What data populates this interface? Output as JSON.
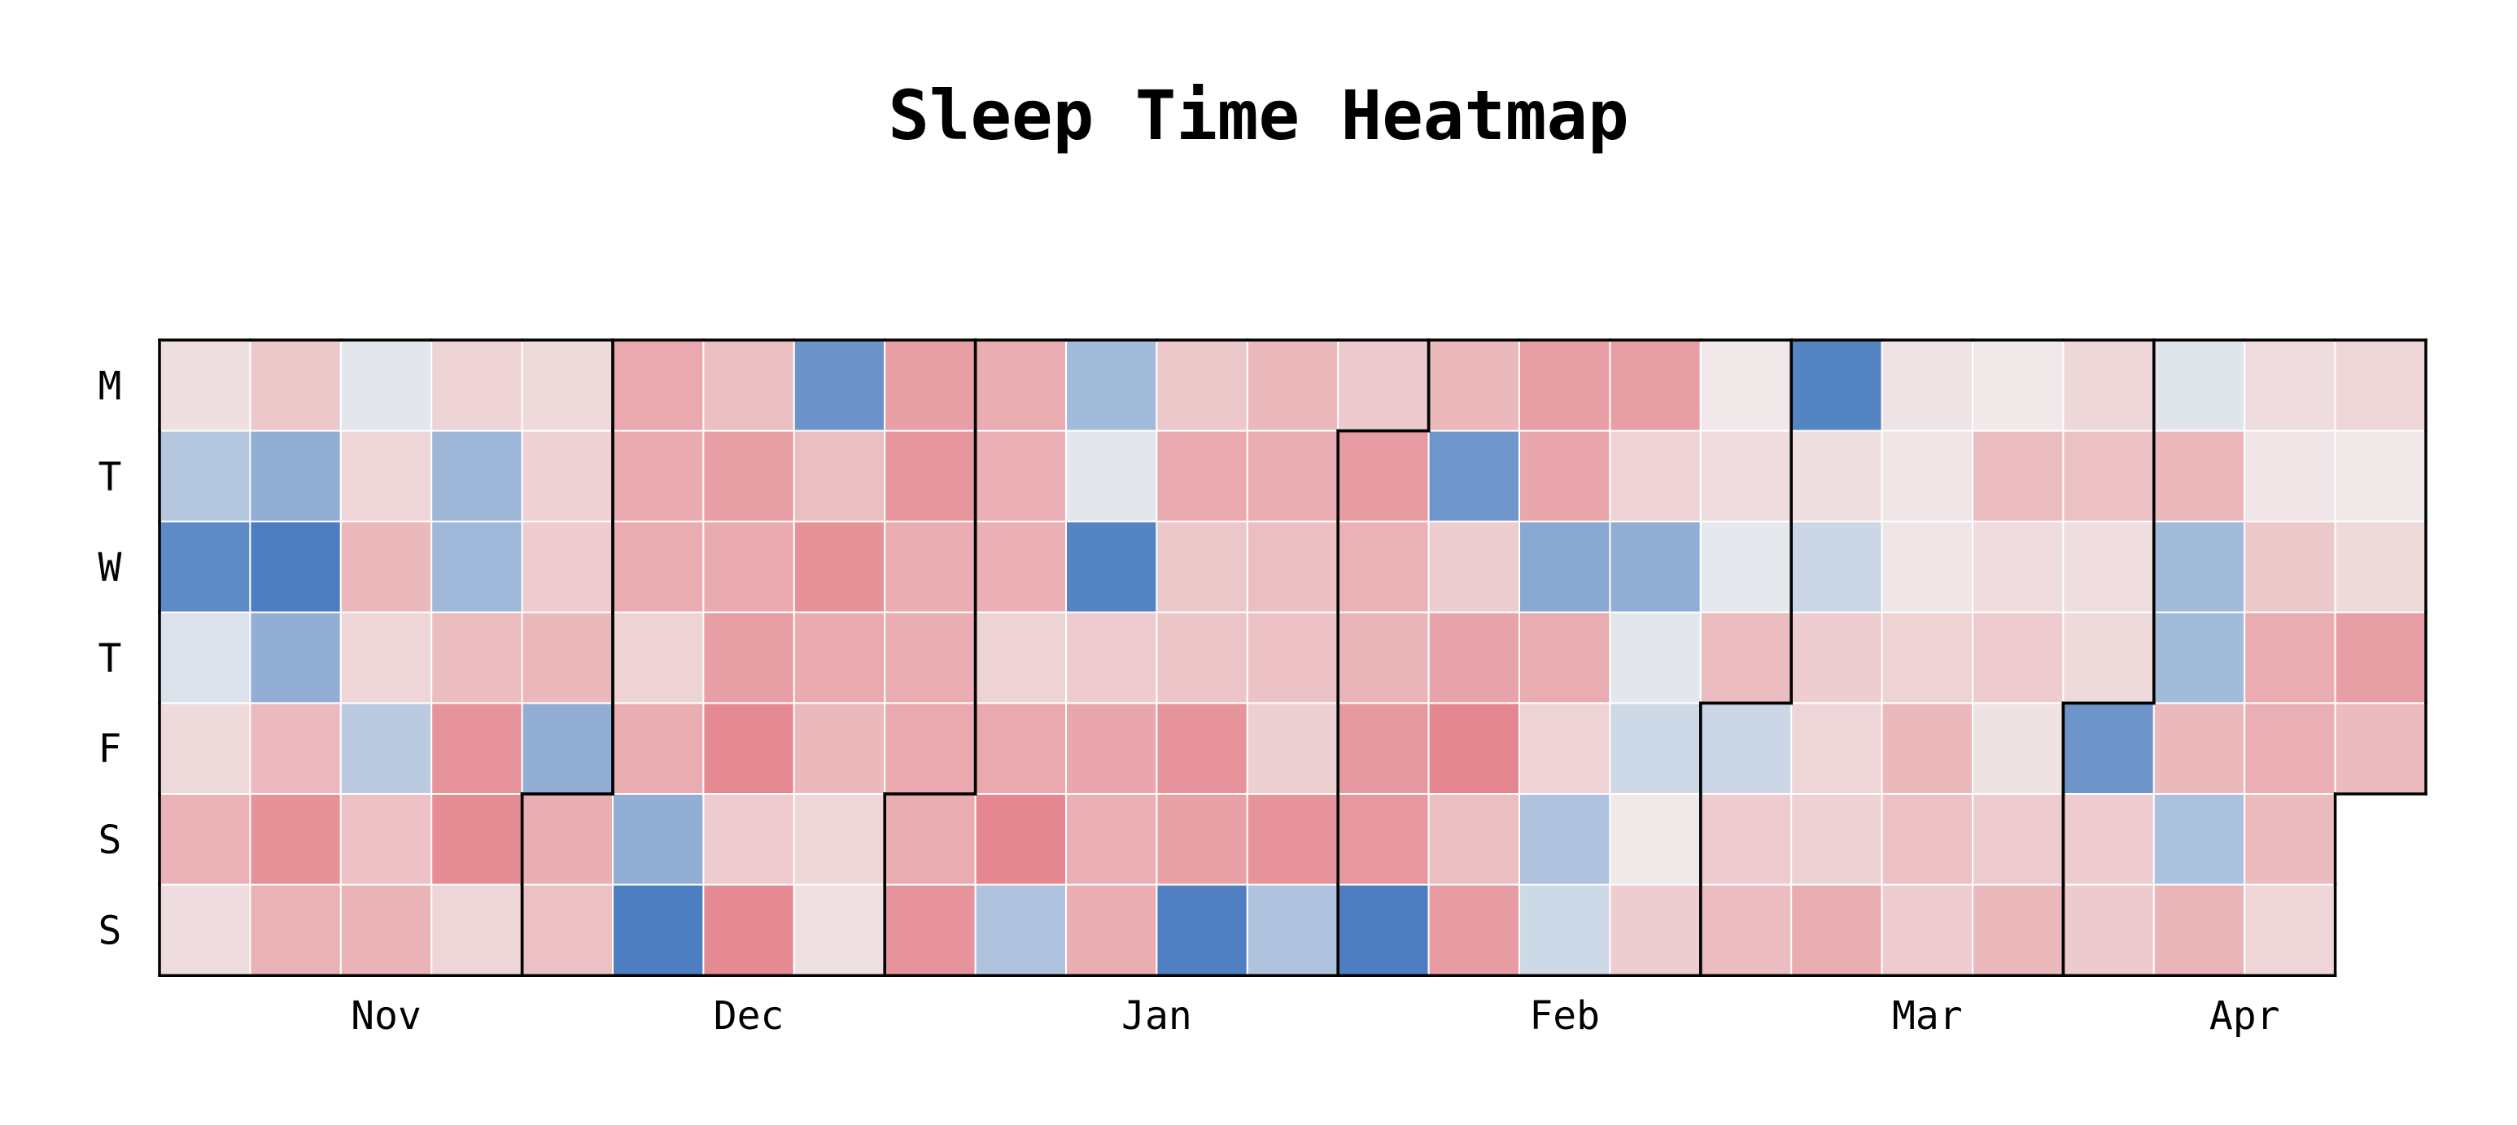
{
  "chart_data": {
    "type": "heatmap",
    "title": "Sleep Time Heatmap",
    "y_tick_labels": [
      "M",
      "T",
      "W",
      "T",
      "F",
      "S",
      "S"
    ],
    "x_tick_labels": [
      {
        "label": "Nov",
        "week": 2.5
      },
      {
        "label": "Dec",
        "week": 6.5
      },
      {
        "label": "Jan",
        "week": 11
      },
      {
        "label": "Feb",
        "week": 15.5
      },
      {
        "label": "Mar",
        "week": 19.5
      },
      {
        "label": "Apr",
        "week": 23
      }
    ],
    "value_range": [
      -1,
      1
    ],
    "color_negative": "#4478be",
    "color_neutral": "#f1f1f1",
    "color_positive": "#e05a66",
    "first_day_offset": 0,
    "month_starts": [
      0,
      33,
      61,
      92,
      123,
      151,
      181
    ],
    "values": [
      [
        0.12,
        -0.35,
        -0.85,
        -0.12,
        0.16,
        0.42,
        0.14
      ],
      [
        0.27,
        -0.55,
        -0.95,
        -0.55,
        0.37,
        0.63,
        0.42
      ],
      [
        -0.08,
        0.18,
        0.38,
        0.18,
        -0.32,
        0.31,
        0.41
      ],
      [
        0.2,
        -0.48,
        -0.47,
        0.35,
        0.62,
        0.67,
        0.18
      ],
      [
        0.16,
        0.21,
        0.25,
        0.38,
        -0.55,
        0.45,
        0.32
      ],
      [
        0.48,
        0.47,
        0.45,
        0.2,
        0.45,
        -0.55,
        -0.95
      ],
      [
        0.34,
        0.55,
        0.47,
        0.55,
        0.68,
        0.25,
        0.68
      ],
      [
        -0.77,
        0.34,
        0.63,
        0.47,
        0.38,
        0.17,
        0.11
      ],
      [
        0.55,
        0.6,
        0.46,
        0.45,
        0.48,
        0.46,
        0.62
      ],
      [
        0.45,
        0.43,
        0.43,
        0.2,
        0.48,
        0.7,
        -0.38
      ],
      [
        -0.45,
        -0.08,
        -0.9,
        0.25,
        0.5,
        0.44,
        0.45
      ],
      [
        0.27,
        0.48,
        0.27,
        0.29,
        0.62,
        0.53,
        -0.93
      ],
      [
        0.38,
        0.45,
        0.34,
        0.31,
        0.22,
        0.62,
        -0.38
      ],
      [
        0.26,
        0.57,
        0.42,
        0.4,
        0.58,
        0.59,
        -0.95
      ],
      [
        0.38,
        -0.75,
        0.24,
        0.51,
        0.7,
        0.34,
        0.56
      ],
      [
        0.55,
        0.5,
        -0.6,
        0.46,
        0.2,
        -0.38,
        -0.2
      ],
      [
        0.55,
        0.2,
        -0.55,
        -0.08,
        -0.2,
        0.05,
        0.24
      ],
      [
        0.06,
        0.14,
        -0.07,
        0.35,
        -0.22,
        0.25,
        0.35
      ],
      [
        -0.9,
        0.12,
        -0.22,
        0.24,
        0.18,
        0.21,
        0.46
      ],
      [
        0.08,
        0.07,
        0.07,
        0.2,
        0.38,
        0.31,
        0.25
      ],
      [
        0.06,
        0.35,
        0.14,
        0.25,
        0.1,
        0.25,
        0.38
      ],
      [
        0.17,
        0.32,
        0.13,
        0.16,
        -0.76,
        0.25,
        0.26
      ],
      [
        -0.1,
        0.38,
        -0.45,
        -0.45,
        0.38,
        -0.4,
        0.4
      ],
      [
        0.14,
        0.07,
        0.27,
        0.46,
        0.44,
        0.36,
        0.18
      ],
      [
        0.18,
        0.06,
        0.16,
        0.55,
        0.36,
        null,
        null
      ]
    ]
  }
}
